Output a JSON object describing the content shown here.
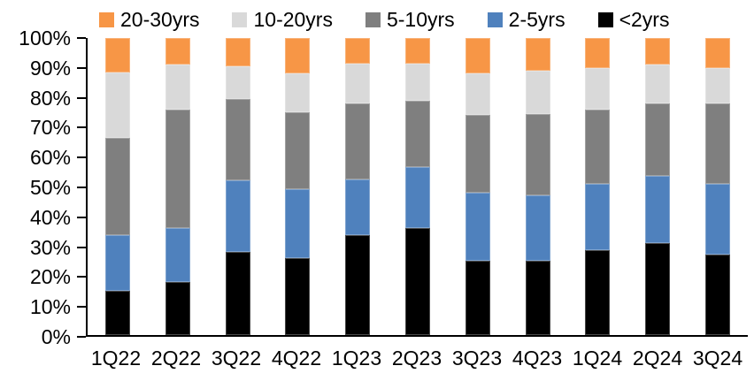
{
  "chart_data": {
    "type": "bar",
    "subtype": "stacked-100-percent",
    "title": "",
    "xlabel": "",
    "ylabel": "",
    "categories": [
      "1Q22",
      "2Q22",
      "3Q22",
      "4Q22",
      "1Q23",
      "2Q23",
      "3Q23",
      "4Q23",
      "1Q24",
      "2Q24",
      "3Q24"
    ],
    "series": [
      {
        "name": "<2yrs",
        "color": "#000000",
        "values": [
          15,
          18,
          28,
          26,
          33.5,
          36,
          25,
          25,
          28.5,
          31,
          27
        ]
      },
      {
        "name": "2-5yrs",
        "color": "#4F81BD",
        "values": [
          18.5,
          18,
          24,
          23,
          19,
          20.5,
          23,
          22,
          22.5,
          22.5,
          24
        ]
      },
      {
        "name": "5-10yrs",
        "color": "#7F7F7F",
        "values": [
          33,
          40,
          27.5,
          26,
          25.5,
          22.5,
          26,
          27.5,
          25,
          24.5,
          27
        ]
      },
      {
        "name": "10-20yrs",
        "color": "#D9D9D9",
        "values": [
          22,
          15,
          11,
          13,
          13.5,
          12.5,
          14,
          14.5,
          14,
          13,
          12
        ]
      },
      {
        "name": "20-30yrs",
        "color": "#F79646",
        "values": [
          11.5,
          9,
          9.5,
          12,
          8.5,
          8.5,
          12,
          11,
          10,
          9,
          10
        ]
      }
    ],
    "ylim": [
      0,
      100
    ],
    "ytick_step": 10,
    "ytick_labels": [
      "0%",
      "10%",
      "20%",
      "30%",
      "40%",
      "50%",
      "60%",
      "70%",
      "80%",
      "90%",
      "100%"
    ],
    "legend": {
      "position": "top",
      "order": [
        "20-30yrs",
        "10-20yrs",
        "5-10yrs",
        "2-5yrs",
        "<2yrs"
      ]
    },
    "grid": false,
    "axis_color": "#000000"
  }
}
